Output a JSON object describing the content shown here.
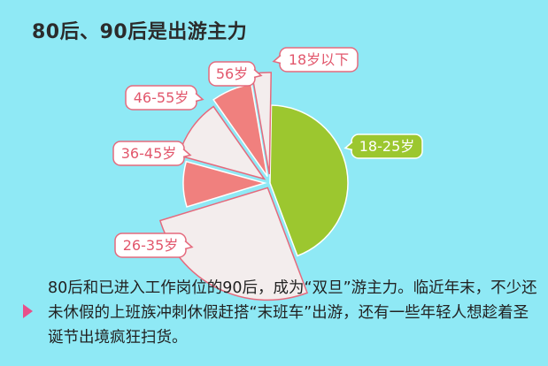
{
  "title": "80后、90后是出游主力",
  "description": "80后和已进入工作岗位的90后，成为“双旦”游主力。临近年末，不少还未休假的上班族冲刺休假赶搭“末班车”出游，还有一些年轻人想趁着圣诞节出境疯狂扫货。",
  "colors": {
    "background": "#8fe9f5",
    "green": "#9cc72f",
    "salmon": "#f0807e",
    "white_slice": "#f3eded",
    "label_border": "#e56a7d",
    "label_text": "#e2576c",
    "arrow": "#e8508a"
  },
  "chart_data": {
    "type": "pie",
    "title": "80后、90后是出游主力",
    "slices": [
      {
        "label": "18-25岁",
        "value": 44,
        "color": "#9cc72f"
      },
      {
        "label": "26-35岁",
        "value": 26,
        "color": "#f3eded"
      },
      {
        "label": "36-45岁",
        "value": 9,
        "color": "#f0807e"
      },
      {
        "label": "46-55岁",
        "value": 11,
        "color": "#f3eded"
      },
      {
        "label": "56岁",
        "value": 7,
        "color": "#f0807e"
      },
      {
        "label": "18岁以下",
        "value": 3,
        "color": "#f3eded"
      }
    ]
  }
}
